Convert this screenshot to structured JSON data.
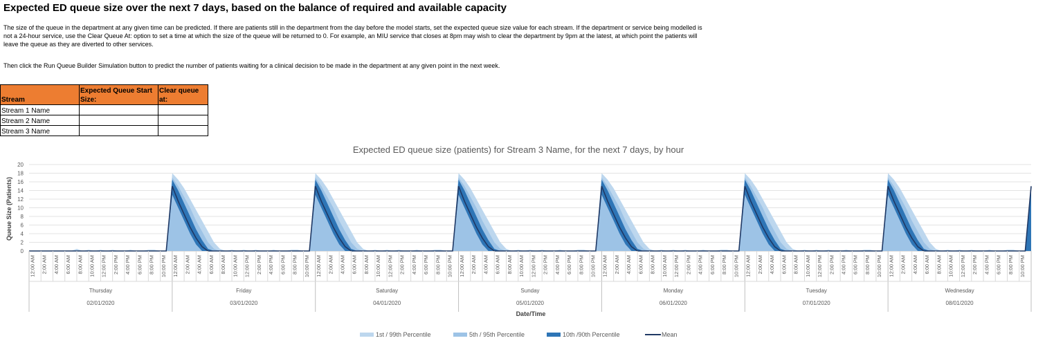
{
  "page": {
    "title": "Expected ED queue size over the next 7 days, based on the balance of required and available capacity",
    "para1_line1": "The size of the queue in the department at any given time can be predicted. If there are patients still in the department from the day before the model starts, set the expected queue size value for each stream. If the department or service being modelled is",
    "para1_line2": "not a 24-hour service, use the Clear Queue At: option to set a time at which the size of the queue will be returned to 0. For example, an MIU service that closes at 8pm may wish to clear the department by 9pm at the latest, at which point the patients will",
    "para1_line3": "leave the queue as they are diverted to other services.",
    "para2": "Then click the Run Queue Builder Simulation button to predict the number of patients waiting for a clinical decision to be made in the department at any given point in the next week."
  },
  "table": {
    "headers": [
      "Stream",
      "Expected Queue Start Size:",
      "Clear queue at:"
    ],
    "rows": [
      {
        "name": "Stream 1 Name",
        "start": "",
        "clear": ""
      },
      {
        "name": "Stream 2 Name",
        "start": "",
        "clear": ""
      },
      {
        "name": "Stream 3 Name",
        "start": "",
        "clear": ""
      }
    ]
  },
  "colors": {
    "header_fill": "#ED7D31",
    "p1_99": "#BDD7EE",
    "p5_95": "#9DC3E6",
    "p10_90": "#2E75B6",
    "mean": "#1F3864"
  },
  "chart_data": {
    "type": "area",
    "title": "Expected ED queue size (patients) for Stream 3 Name, for the next 7 days, by hour",
    "xlabel": "Date/Time",
    "ylabel": "Queue Size (Patients)",
    "ylim": [
      0,
      20
    ],
    "yticks": [
      0,
      2,
      4,
      6,
      8,
      10,
      12,
      14,
      16,
      18,
      20
    ],
    "grid": true,
    "legend_position": "bottom",
    "hour_labels": [
      "12:00 AM",
      "2:00 AM",
      "4:00 AM",
      "6:00 AM",
      "8:00 AM",
      "10:00 AM",
      "12:00 PM",
      "2:00 PM",
      "4:00 PM",
      "6:00 PM",
      "8:00 PM",
      "10:00 PM"
    ],
    "days": [
      {
        "day": "Thursday",
        "date": "02/01/2020"
      },
      {
        "day": "Friday",
        "date": "03/01/2020"
      },
      {
        "day": "Saturday",
        "date": "04/01/2020"
      },
      {
        "day": "Sunday",
        "date": "05/01/2020"
      },
      {
        "day": "Monday",
        "date": "06/01/2020"
      },
      {
        "day": "Tuesday",
        "date": "07/01/2020"
      },
      {
        "day": "Wednesday",
        "date": "08/01/2020"
      }
    ],
    "hourly_profile": {
      "hours": [
        0,
        1,
        2,
        3,
        4,
        5,
        6,
        7,
        8,
        9,
        10,
        11,
        12,
        13,
        14,
        15,
        16,
        17,
        18,
        19,
        20,
        21,
        22,
        23
      ],
      "p1": [
        0,
        0,
        0,
        0,
        0,
        0,
        0,
        0,
        0,
        0,
        0,
        0,
        0,
        0,
        0,
        0,
        0,
        0,
        0,
        0,
        0,
        0,
        0,
        0
      ],
      "p99": [
        18,
        16.5,
        14.5,
        12,
        9.5,
        7,
        4.5,
        2,
        0.5,
        0,
        0.3,
        0,
        0.3,
        0,
        0.3,
        0,
        0,
        0.3,
        0,
        0,
        0.3,
        0.3,
        0,
        0
      ],
      "p5": [
        0,
        0,
        0,
        0,
        0,
        0,
        0,
        0,
        0,
        0,
        0,
        0,
        0,
        0,
        0,
        0,
        0,
        0,
        0,
        0,
        0,
        0,
        0,
        0
      ],
      "p95": [
        17,
        15,
        12.5,
        10,
        7,
        4.5,
        2,
        0.5,
        0,
        0,
        0,
        0,
        0,
        0,
        0,
        0,
        0,
        0,
        0,
        0,
        0,
        0,
        0,
        0
      ],
      "p10": [
        13,
        10,
        7,
        4,
        1.5,
        0,
        0,
        0,
        0,
        0,
        0,
        0,
        0,
        0,
        0,
        0,
        0,
        0,
        0,
        0,
        0,
        0,
        0,
        0
      ],
      "p90": [
        16.5,
        14,
        11,
        8,
        5,
        2.5,
        0.5,
        0,
        0,
        0,
        0,
        0,
        0,
        0,
        0,
        0,
        0,
        0,
        0,
        0,
        0,
        0,
        0,
        0
      ],
      "mean": [
        15,
        11.5,
        8.5,
        5.5,
        3,
        1,
        0,
        0,
        0,
        0,
        0,
        0,
        0,
        0,
        0,
        0,
        0,
        0,
        0,
        0,
        0,
        0,
        0,
        0
      ]
    },
    "first_day_start": 0,
    "final_hour_value": 15,
    "series": [
      {
        "name": "1st / 99th Percentile"
      },
      {
        "name": "5th / 95th Percentile"
      },
      {
        "name": "10th /90th Percentile"
      },
      {
        "name": "Mean"
      }
    ]
  }
}
